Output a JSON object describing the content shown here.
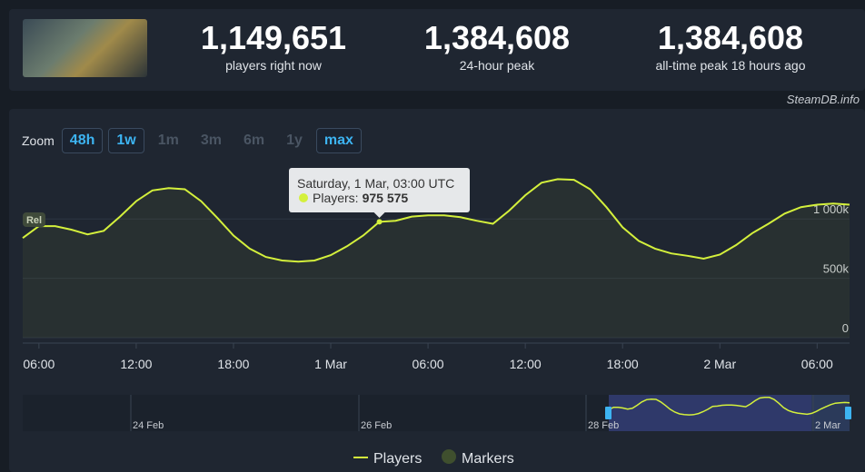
{
  "header": {
    "stats": [
      {
        "value": "1,149,651",
        "label": "players right now"
      },
      {
        "value": "1,384,608",
        "label": "24-hour peak"
      },
      {
        "value": "1,384,608",
        "label": "all-time peak 18 hours ago"
      }
    ],
    "brand": "SteamDB.info"
  },
  "zoom": {
    "label": "Zoom",
    "buttons": [
      {
        "label": "48h",
        "state": "on"
      },
      {
        "label": "1w",
        "state": "on"
      },
      {
        "label": "1m",
        "state": "off"
      },
      {
        "label": "3m",
        "state": "off"
      },
      {
        "label": "6m",
        "state": "off"
      },
      {
        "label": "1y",
        "state": "off"
      },
      {
        "label": "max",
        "state": "on"
      }
    ]
  },
  "chart_data": {
    "type": "line",
    "categories": [
      null,
      "06:00",
      null,
      null,
      null,
      null,
      null,
      "12:00",
      null,
      null,
      null,
      null,
      null,
      "18:00",
      null,
      null,
      null,
      null,
      null,
      "1 Mar",
      null,
      null,
      null,
      null,
      null,
      "06:00",
      null,
      null,
      null,
      null,
      null,
      "12:00",
      null,
      null,
      null,
      null,
      null,
      "18:00",
      null,
      null,
      null,
      null,
      null,
      "2 Mar",
      null,
      null,
      null,
      null,
      null,
      "06:00",
      null,
      null
    ],
    "series": [
      {
        "name": "Players",
        "color": "#d4f03c",
        "values": [
          840000,
          940000,
          940000,
          910000,
          870000,
          900000,
          1020000,
          1150000,
          1240000,
          1260000,
          1250000,
          1150000,
          1010000,
          860000,
          750000,
          680000,
          650000,
          640000,
          650000,
          695000,
          770000,
          860000,
          975575,
          985000,
          1020000,
          1030000,
          1030000,
          1015000,
          985000,
          960000,
          1070000,
          1200000,
          1305000,
          1335000,
          1330000,
          1250000,
          1100000,
          930000,
          815000,
          750000,
          710000,
          690000,
          665000,
          700000,
          780000,
          880000,
          960000,
          1045000,
          1100000,
          1120000,
          1130000,
          1120000
        ]
      }
    ],
    "markers_legend": {
      "name": "Markers",
      "color": "#3f4f2e"
    },
    "ylim": [
      0,
      1430000
    ],
    "yticks": [
      {
        "value": 0,
        "label": "0"
      },
      {
        "value": 500000,
        "label": "500k"
      },
      {
        "value": 1000000,
        "label": "1 000k"
      }
    ],
    "grid": true,
    "badge": "Rel",
    "tooltip": {
      "index": 22,
      "title": "Saturday, 1 Mar, 03:00 UTC",
      "series_label": "Players:",
      "value_label": "975 575"
    },
    "navigator": {
      "labels": [
        "24 Feb",
        "26 Feb",
        "28 Feb",
        "2 Mar"
      ]
    }
  }
}
